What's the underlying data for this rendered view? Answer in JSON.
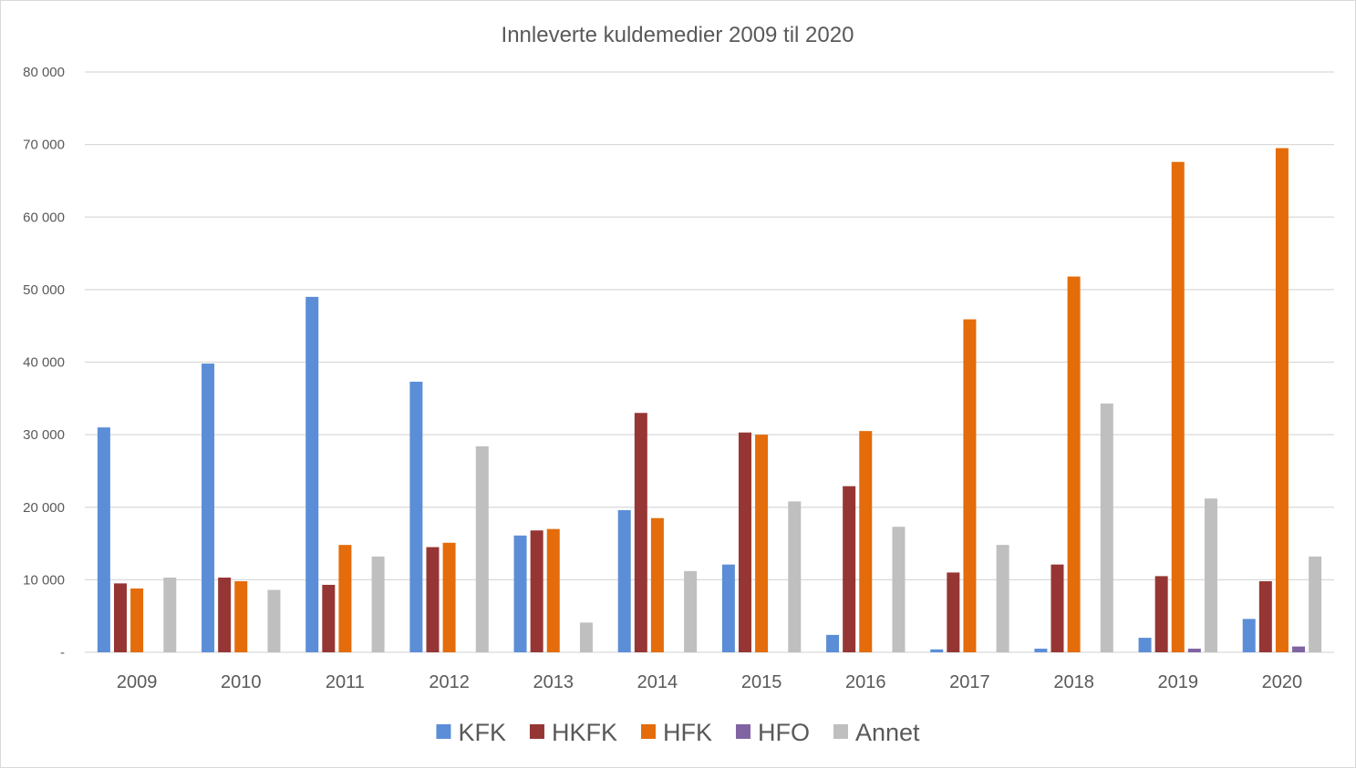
{
  "chart_data": {
    "type": "bar",
    "title": "Innleverte kuldemedier 2009 til 2020",
    "xlabel": "",
    "ylabel": "",
    "ylim": [
      0,
      80000
    ],
    "yticks": [
      0,
      10000,
      20000,
      30000,
      40000,
      50000,
      60000,
      70000,
      80000
    ],
    "ytick_labels": [
      "-",
      "10 000",
      "20 000",
      "30 000",
      "40 000",
      "50 000",
      "60 000",
      "70 000",
      "80 000"
    ],
    "grid": true,
    "legend_position": "bottom",
    "categories": [
      "2009",
      "2010",
      "2011",
      "2012",
      "2013",
      "2014",
      "2015",
      "2016",
      "2017",
      "2018",
      "2019",
      "2020"
    ],
    "series": [
      {
        "name": "KFK",
        "color": "#5b8ed6",
        "values": [
          31000,
          39800,
          49000,
          37300,
          16100,
          19600,
          12100,
          2400,
          400,
          500,
          2000,
          4600
        ]
      },
      {
        "name": "HKFK",
        "color": "#963634",
        "values": [
          9500,
          10300,
          9300,
          14500,
          16800,
          33000,
          30300,
          22900,
          11000,
          12100,
          10500,
          9800
        ]
      },
      {
        "name": "HFK",
        "color": "#e46c0a",
        "values": [
          8800,
          9800,
          14800,
          15100,
          17000,
          18500,
          30000,
          30500,
          45900,
          51800,
          67600,
          69500
        ]
      },
      {
        "name": "HFO",
        "color": "#8064a2",
        "values": [
          0,
          0,
          0,
          0,
          0,
          0,
          0,
          0,
          0,
          0,
          500,
          800
        ]
      },
      {
        "name": "Annet",
        "color": "#bfbfbf",
        "values": [
          10300,
          8600,
          13200,
          28400,
          4100,
          11200,
          20800,
          17300,
          14800,
          34300,
          21200,
          13200
        ]
      }
    ]
  }
}
